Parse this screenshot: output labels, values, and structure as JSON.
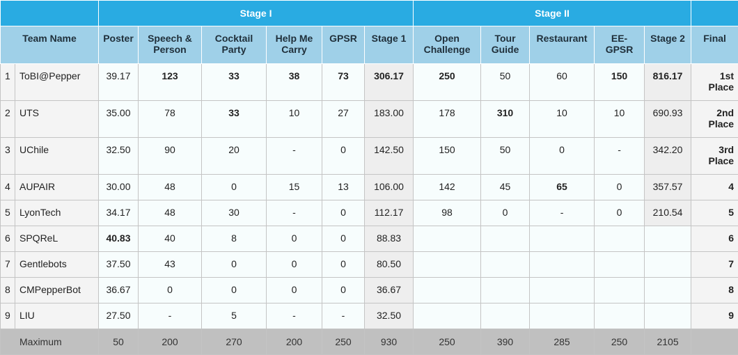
{
  "stages": [
    "Stage I",
    "Stage II"
  ],
  "columns": [
    "Team Name",
    "Poster",
    "Speech & Person",
    "Cocktail Party",
    "Help Me Carry",
    "GPSR",
    "Stage 1",
    "Open Challenge",
    "Tour Guide",
    "Restaurant",
    "EE-GPSR",
    "Stage 2",
    "Final"
  ],
  "rows": [
    {
      "rank": "1",
      "team": "ToBI@Pepper",
      "poster": "39.17",
      "speech": "123",
      "cocktail": "33",
      "help": "38",
      "gpsr": "73",
      "stage1": "306.17",
      "open": "250",
      "tour": "50",
      "restaurant": "60",
      "eegpsr": "150",
      "stage2": "816.17",
      "final": "1st Place"
    },
    {
      "rank": "2",
      "team": "UTS",
      "poster": "35.00",
      "speech": "78",
      "cocktail": "33",
      "help": "10",
      "gpsr": "27",
      "stage1": "183.00",
      "open": "178",
      "tour": "310",
      "restaurant": "10",
      "eegpsr": "10",
      "stage2": "690.93",
      "final": "2nd Place"
    },
    {
      "rank": "3",
      "team": "UChile",
      "poster": "32.50",
      "speech": "90",
      "cocktail": "20",
      "help": "-",
      "gpsr": "0",
      "stage1": "142.50",
      "open": "150",
      "tour": "50",
      "restaurant": "0",
      "eegpsr": "-",
      "stage2": "342.20",
      "final": "3rd Place"
    },
    {
      "rank": "4",
      "team": "AUPAIR",
      "poster": "30.00",
      "speech": "48",
      "cocktail": "0",
      "help": "15",
      "gpsr": "13",
      "stage1": "106.00",
      "open": "142",
      "tour": "45",
      "restaurant": "65",
      "eegpsr": "0",
      "stage2": "357.57",
      "final": "4"
    },
    {
      "rank": "5",
      "team": "LyonTech",
      "poster": "34.17",
      "speech": "48",
      "cocktail": "30",
      "help": "-",
      "gpsr": "0",
      "stage1": "112.17",
      "open": "98",
      "tour": "0",
      "restaurant": "-",
      "eegpsr": "0",
      "stage2": "210.54",
      "final": "5"
    },
    {
      "rank": "6",
      "team": "SPQReL",
      "poster": "40.83",
      "speech": "40",
      "cocktail": "8",
      "help": "0",
      "gpsr": "0",
      "stage1": "88.83",
      "open": "",
      "tour": "",
      "restaurant": "",
      "eegpsr": "",
      "stage2": "",
      "final": "6"
    },
    {
      "rank": "7",
      "team": "Gentlebots",
      "poster": "37.50",
      "speech": "43",
      "cocktail": "0",
      "help": "0",
      "gpsr": "0",
      "stage1": "80.50",
      "open": "",
      "tour": "",
      "restaurant": "",
      "eegpsr": "",
      "stage2": "",
      "final": "7"
    },
    {
      "rank": "8",
      "team": "CMPepperBot",
      "poster": "36.67",
      "speech": "0",
      "cocktail": "0",
      "help": "0",
      "gpsr": "0",
      "stage1": "36.67",
      "open": "",
      "tour": "",
      "restaurant": "",
      "eegpsr": "",
      "stage2": "",
      "final": "8"
    },
    {
      "rank": "9",
      "team": "LIU",
      "poster": "27.50",
      "speech": "-",
      "cocktail": "5",
      "help": "-",
      "gpsr": "-",
      "stage1": "32.50",
      "open": "",
      "tour": "",
      "restaurant": "",
      "eegpsr": "",
      "stage2": "",
      "final": "9"
    }
  ],
  "maximum": {
    "label": "Maximum",
    "poster": "50",
    "speech": "200",
    "cocktail": "270",
    "help": "200",
    "gpsr": "250",
    "stage1": "930",
    "open": "250",
    "tour": "390",
    "restaurant": "285",
    "eegpsr": "250",
    "stage2": "2105",
    "final": ""
  }
}
